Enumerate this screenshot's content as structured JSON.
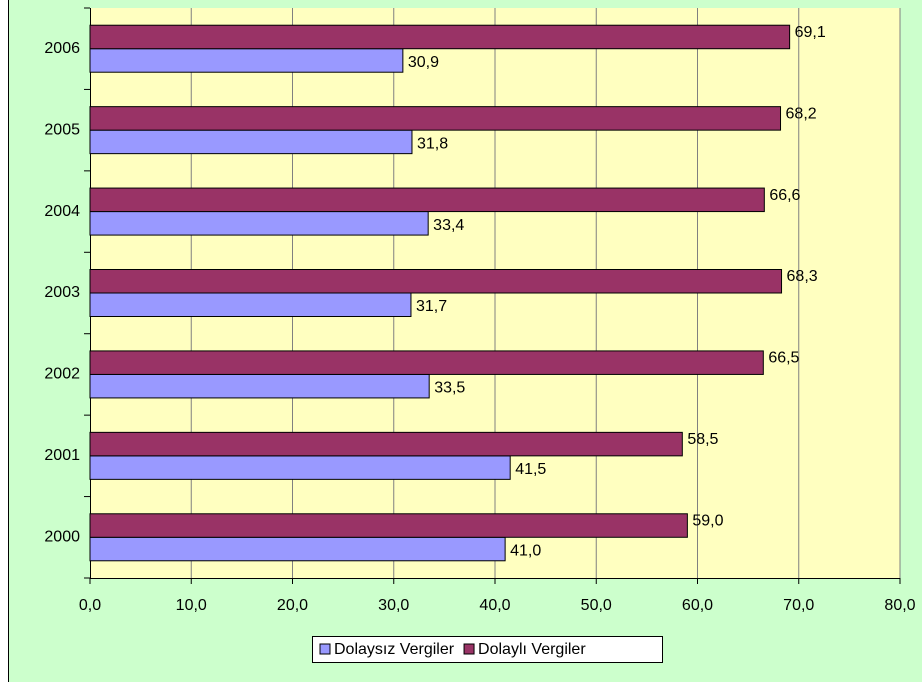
{
  "chart_data": {
    "type": "hbar",
    "categories": [
      "2000",
      "2001",
      "2002",
      "2003",
      "2004",
      "2005",
      "2006"
    ],
    "series": [
      {
        "name": "Dolaysız Vergiler",
        "color": "#9999ff",
        "values": [
          41.0,
          41.5,
          33.5,
          31.7,
          33.4,
          31.8,
          30.9
        ],
        "value_labels": [
          "41,0",
          "41,5",
          "33,5",
          "31,7",
          "33,4",
          "31,8",
          "30,9"
        ]
      },
      {
        "name": "Dolaylı Vergiler",
        "color": "#993366",
        "values": [
          59.0,
          58.5,
          66.5,
          68.3,
          66.6,
          68.2,
          69.1
        ],
        "value_labels": [
          "59,0",
          "58,5",
          "66,5",
          "68,3",
          "66,6",
          "68,2",
          "69,1"
        ]
      }
    ],
    "xlim": [
      0,
      80
    ],
    "xticks": [
      {
        "value": 0,
        "label": "0,0"
      },
      {
        "value": 10,
        "label": "10,0"
      },
      {
        "value": 20,
        "label": "20,0"
      },
      {
        "value": 30,
        "label": "30,0"
      },
      {
        "value": 40,
        "label": "40,0"
      },
      {
        "value": 50,
        "label": "50,0"
      },
      {
        "value": 60,
        "label": "60,0"
      },
      {
        "value": 70,
        "label": "70,0"
      },
      {
        "value": 80,
        "label": "80,0"
      }
    ],
    "grid": true,
    "legend": "bottom"
  }
}
